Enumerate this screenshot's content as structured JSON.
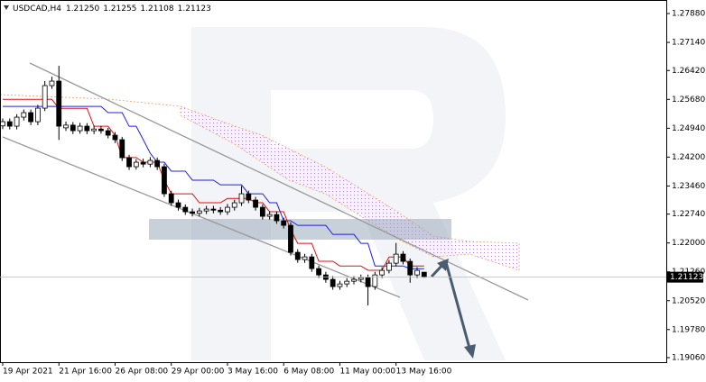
{
  "chart_data": {
    "type": "candlestick",
    "header": {
      "symbol": "USDCAD,H4",
      "ohlc": [
        "1.21250",
        "1.21255",
        "1.21108",
        "1.21123"
      ]
    },
    "categories": [
      "19 Apr 2021",
      null,
      null,
      null,
      null,
      null,
      null,
      null,
      "21 Apr 16:00",
      null,
      null,
      null,
      null,
      null,
      null,
      null,
      "26 Apr 08:00",
      null,
      null,
      null,
      null,
      null,
      null,
      null,
      "29 Apr 00:00",
      null,
      null,
      null,
      null,
      null,
      null,
      null,
      "3 May 16:00",
      null,
      null,
      null,
      null,
      null,
      null,
      null,
      "6 May 08:00",
      null,
      null,
      null,
      null,
      null,
      null,
      null,
      "11 May 00:00",
      null,
      null,
      null,
      null,
      null,
      null,
      null,
      "13 May 16:00",
      null,
      null,
      null,
      null
    ],
    "ohlc": [
      [
        1.25,
        1.2519,
        1.2492,
        1.25108
      ],
      [
        1.25108,
        1.2519,
        1.2491,
        1.24993
      ],
      [
        1.24993,
        1.253,
        1.2491,
        1.25224
      ],
      [
        1.25224,
        1.2542,
        1.2514,
        1.2534
      ],
      [
        1.2534,
        1.2542,
        1.2502,
        1.25108
      ],
      [
        1.25108,
        1.2554,
        1.2502,
        1.25455
      ],
      [
        1.25455,
        1.2615,
        1.2538,
        1.26033
      ],
      [
        1.26033,
        1.2626,
        1.2595,
        1.26148
      ],
      [
        1.26148,
        1.2654,
        1.2464,
        1.24993
      ],
      [
        1.2495,
        1.2511,
        1.2487,
        1.2502
      ],
      [
        1.2502,
        1.251,
        1.2479,
        1.24877
      ],
      [
        1.24877,
        1.2508,
        1.248,
        1.24993
      ],
      [
        1.24993,
        1.2507,
        1.2479,
        1.24877
      ],
      [
        1.24877,
        1.2501,
        1.2479,
        1.2492
      ],
      [
        1.2492,
        1.25,
        1.248,
        1.24877
      ],
      [
        1.24877,
        1.2495,
        1.2468,
        1.24762
      ],
      [
        1.24762,
        1.2484,
        1.2456,
        1.24647
      ],
      [
        1.24647,
        1.2472,
        1.241,
        1.24185
      ],
      [
        1.24185,
        1.2426,
        1.2387,
        1.23954
      ],
      [
        1.23954,
        1.2415,
        1.2388,
        1.24069
      ],
      [
        1.24069,
        1.2416,
        1.2394,
        1.2402
      ],
      [
        1.2402,
        1.242,
        1.2394,
        1.24115
      ],
      [
        1.24115,
        1.2419,
        1.2387,
        1.23954
      ],
      [
        1.23954,
        1.2403,
        1.2318,
        1.23261
      ],
      [
        1.23261,
        1.2334,
        1.2295,
        1.2303
      ],
      [
        1.2303,
        1.2311,
        1.2283,
        1.22914
      ],
      [
        1.22914,
        1.2299,
        1.2272,
        1.22799
      ],
      [
        1.22799,
        1.2288,
        1.2268,
        1.2276
      ],
      [
        1.2276,
        1.229,
        1.2268,
        1.2282
      ],
      [
        1.2282,
        1.2295,
        1.2274,
        1.22868
      ],
      [
        1.22868,
        1.2295,
        1.2276,
        1.2284
      ],
      [
        1.2284,
        1.2292,
        1.2272,
        1.22799
      ],
      [
        1.22799,
        1.23,
        1.2272,
        1.22914
      ],
      [
        1.22914,
        1.2311,
        1.2283,
        1.2303
      ],
      [
        1.2303,
        1.2346,
        1.2295,
        1.23261
      ],
      [
        1.23261,
        1.2334,
        1.2302,
        1.23099
      ],
      [
        1.23099,
        1.2318,
        1.2283,
        1.22914
      ],
      [
        1.22914,
        1.2299,
        1.226,
        1.22683
      ],
      [
        1.22683,
        1.2281,
        1.226,
        1.22729
      ],
      [
        1.22729,
        1.2281,
        1.2249,
        1.22568
      ],
      [
        1.22568,
        1.2265,
        1.2237,
        1.22452
      ],
      [
        1.22452,
        1.2253,
        1.2168,
        1.21759
      ],
      [
        1.21759,
        1.2184,
        1.2149,
        1.21574
      ],
      [
        1.21574,
        1.2172,
        1.2149,
        1.21643
      ],
      [
        1.21643,
        1.2172,
        1.2126,
        1.21343
      ],
      [
        1.21343,
        1.2142,
        1.211,
        1.21181
      ],
      [
        1.21181,
        1.2126,
        1.2098,
        1.21066
      ],
      [
        1.21066,
        1.2115,
        1.208,
        1.20881
      ],
      [
        1.20881,
        1.2103,
        1.208,
        1.2095
      ],
      [
        1.2095,
        1.211,
        1.2087,
        1.21019
      ],
      [
        1.21019,
        1.2115,
        1.2094,
        1.21066
      ],
      [
        1.21066,
        1.2119,
        1.2099,
        1.21112
      ],
      [
        1.21112,
        1.2119,
        1.204,
        1.20881
      ],
      [
        1.20881,
        1.2126,
        1.208,
        1.21181
      ],
      [
        1.21181,
        1.2138,
        1.211,
        1.21297
      ],
      [
        1.21297,
        1.2156,
        1.2122,
        1.21482
      ],
      [
        1.21482,
        1.22,
        1.214,
        1.21713
      ],
      [
        1.21713,
        1.2179,
        1.2145,
        1.21528
      ],
      [
        1.21528,
        1.216,
        1.2098,
        1.21181
      ],
      [
        1.21181,
        1.2138,
        1.211,
        1.21297
      ],
      [
        1.2125,
        1.21255,
        1.21108,
        1.21123
      ]
    ],
    "series": [
      {
        "color": "#2020e0",
        "values": [
          1.255,
          1.255,
          1.255,
          1.255,
          1.255,
          1.255,
          1.255,
          1.255,
          1.255,
          1.255,
          1.255,
          1.255,
          1.255,
          1.255,
          1.255,
          1.2534,
          1.2534,
          1.2534,
          1.2499,
          1.2499,
          1.2465,
          1.243,
          1.2407,
          1.2407,
          1.2384,
          1.2384,
          1.2384,
          1.2361,
          1.2361,
          1.2361,
          1.2361,
          1.2349,
          1.2349,
          1.2349,
          1.2349,
          1.2326,
          1.2326,
          1.2326,
          1.2303,
          1.2303,
          1.2257,
          1.2257,
          1.2245,
          1.2245,
          1.2245,
          1.2245,
          1.2245,
          1.2222,
          1.2222,
          1.2222,
          1.2222,
          1.2199,
          1.2199,
          1.2141,
          1.2141,
          1.2141,
          1.2141,
          1.2141,
          1.2134,
          1.2134,
          1.2134
        ]
      },
      {
        "color": "#e01010",
        "values": [
          1.2568,
          1.2568,
          1.2568,
          1.2568,
          1.2568,
          1.2568,
          1.2568,
          1.2568,
          1.2545,
          1.2545,
          1.2545,
          1.2545,
          1.2545,
          1.2499,
          1.2499,
          1.2499,
          1.2476,
          1.2419,
          1.2419,
          1.2419,
          1.2407,
          1.2407,
          1.2407,
          1.2361,
          1.2326,
          1.2326,
          1.2326,
          1.2326,
          1.2303,
          1.2303,
          1.2303,
          1.2303,
          1.2314,
          1.2314,
          1.2314,
          1.2314,
          1.2303,
          1.2303,
          1.228,
          1.228,
          1.228,
          1.2234,
          1.2199,
          1.2199,
          1.2199,
          1.2153,
          1.2153,
          1.2153,
          1.2141,
          1.2141,
          1.2141,
          1.2141,
          1.213,
          1.213,
          1.213,
          1.2164,
          1.2164,
          1.2164,
          1.2141,
          1.2141,
          1.2141
        ]
      }
    ],
    "ylim": [
      1.18944,
      1.28227
    ],
    "yticks": [
      {
        "value": 1.2788,
        "label": "1.27880"
      },
      {
        "value": 1.2714,
        "label": "1.27140"
      },
      {
        "value": 1.2642,
        "label": "1.26420"
      },
      {
        "value": 1.2568,
        "label": "1.25680"
      },
      {
        "value": 1.2494,
        "label": "1.24940"
      },
      {
        "value": 1.242,
        "label": "1.24200"
      },
      {
        "value": 1.2346,
        "label": "1.23460"
      },
      {
        "value": 1.2274,
        "label": "1.22740"
      },
      {
        "value": 1.22,
        "label": "1.22000"
      },
      {
        "value": 1.2126,
        "label": "1.21260"
      },
      {
        "value": 1.2052,
        "label": "1.20520"
      },
      {
        "value": 1.1978,
        "label": "1.19780"
      },
      {
        "value": 1.1906,
        "label": "1.19060"
      }
    ],
    "last_price": {
      "value": 1.21123,
      "label": "1.21123"
    },
    "grid": false
  }
}
